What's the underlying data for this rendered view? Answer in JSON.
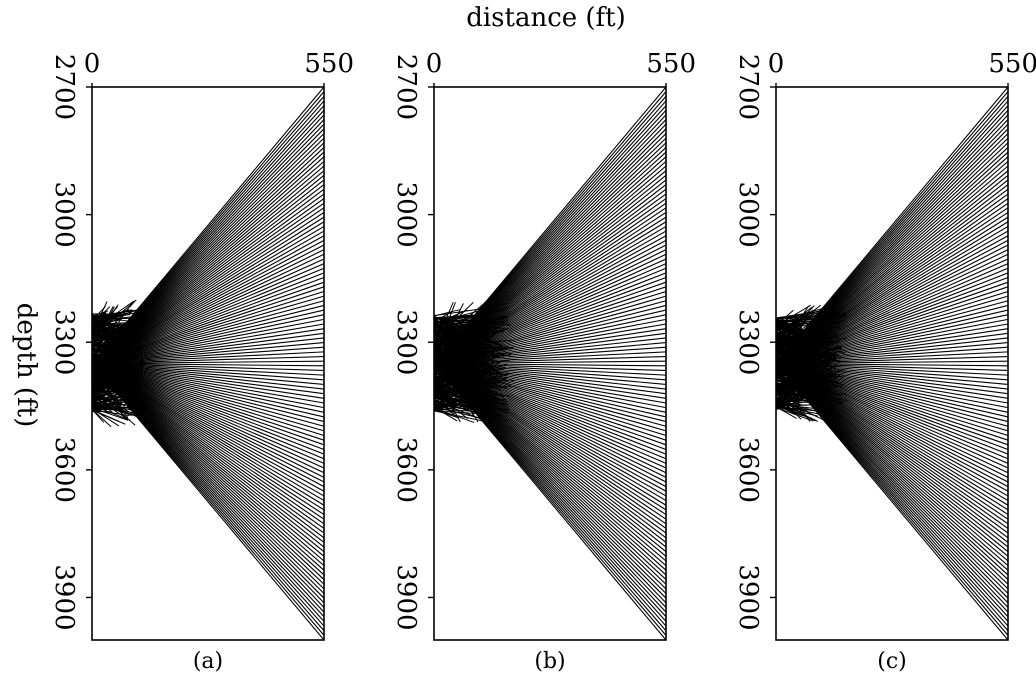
{
  "figure": {
    "xlabel": "distance (ft)",
    "ylabel": "depth (ft)"
  },
  "chart_data": [
    {
      "type": "line",
      "subplot_label": "(a)",
      "xlim": [
        0,
        550
      ],
      "ylim": [
        2700,
        4000
      ],
      "y_inverted": true,
      "x_ticks": [
        0,
        550
      ],
      "y_ticks": [
        2700,
        3000,
        3300,
        3600,
        3900
      ],
      "source": {
        "x": 0,
        "y": 3350
      },
      "ray_fan": {
        "count": 120,
        "end_x": 550,
        "end_y_min": 2700,
        "end_y_max": 4000,
        "dense_zone_x_max": 130,
        "dense_zone_y": [
          3220,
          3480
        ]
      }
    },
    {
      "type": "line",
      "subplot_label": "(b)",
      "xlim": [
        0,
        550
      ],
      "ylim": [
        2700,
        4000
      ],
      "y_inverted": true,
      "x_ticks": [
        0,
        550
      ],
      "y_ticks": [
        2700,
        3000,
        3300,
        3600,
        3900
      ],
      "source": {
        "x": 0,
        "y": 3350
      },
      "ray_fan": {
        "count": 120,
        "end_x": 550,
        "end_y_min": 2700,
        "end_y_max": 4000,
        "dense_zone_x_max": 190,
        "dense_zone_y": [
          3220,
          3470
        ]
      }
    },
    {
      "type": "line",
      "subplot_label": "(c)",
      "xlim": [
        0,
        550
      ],
      "ylim": [
        2700,
        4000
      ],
      "y_inverted": true,
      "x_ticks": [
        0,
        550
      ],
      "y_ticks": [
        2700,
        3000,
        3300,
        3600,
        3900
      ],
      "source": {
        "x": 0,
        "y": 3350
      },
      "ray_fan": {
        "count": 120,
        "end_x": 550,
        "end_y_min": 2700,
        "end_y_max": 4000,
        "dense_zone_x_max": 170,
        "dense_zone_y": [
          3230,
          3470
        ]
      }
    }
  ]
}
